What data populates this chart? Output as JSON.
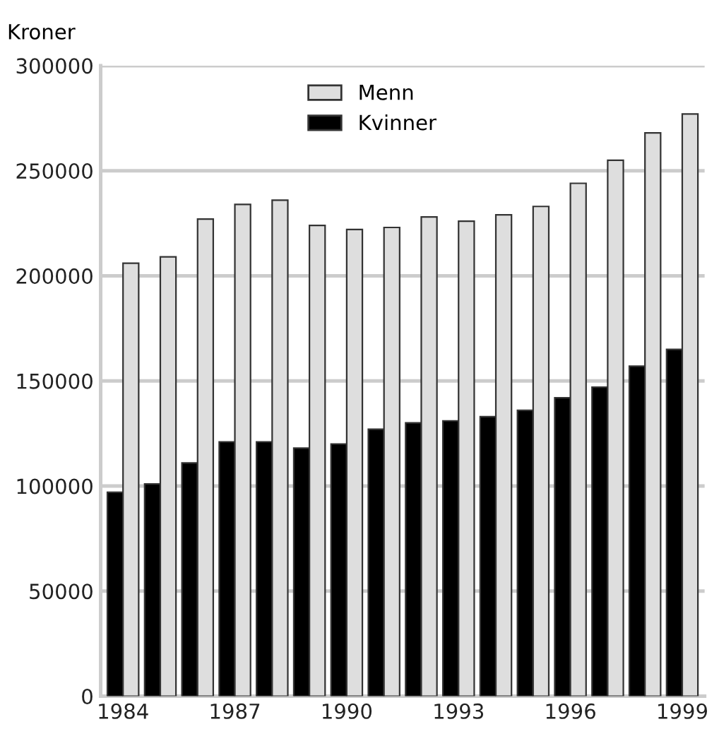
{
  "chart_data": {
    "type": "bar",
    "ylabel": "Kroner",
    "categories": [
      "1984",
      null,
      null,
      "1987",
      null,
      null,
      "1990",
      null,
      null,
      "1993",
      null,
      null,
      "1996",
      null,
      null,
      "1999"
    ],
    "series": [
      {
        "name": "Kvinner",
        "color": "#000000",
        "values": [
          97000,
          101000,
          111000,
          121000,
          121000,
          118000,
          120000,
          127000,
          130000,
          131000,
          133000,
          136000,
          142000,
          147000,
          157000,
          165000
        ]
      },
      {
        "name": "Menn",
        "color": "#dedede",
        "values": [
          206000,
          209000,
          227000,
          234000,
          236000,
          224000,
          222000,
          223000,
          228000,
          226000,
          229000,
          233000,
          244000,
          255000,
          268000,
          277000
        ]
      }
    ],
    "ylim": [
      0,
      300000
    ],
    "yticks": [
      0,
      50000,
      100000,
      150000,
      200000,
      250000,
      300000
    ],
    "grid": "y",
    "legend": "top"
  }
}
